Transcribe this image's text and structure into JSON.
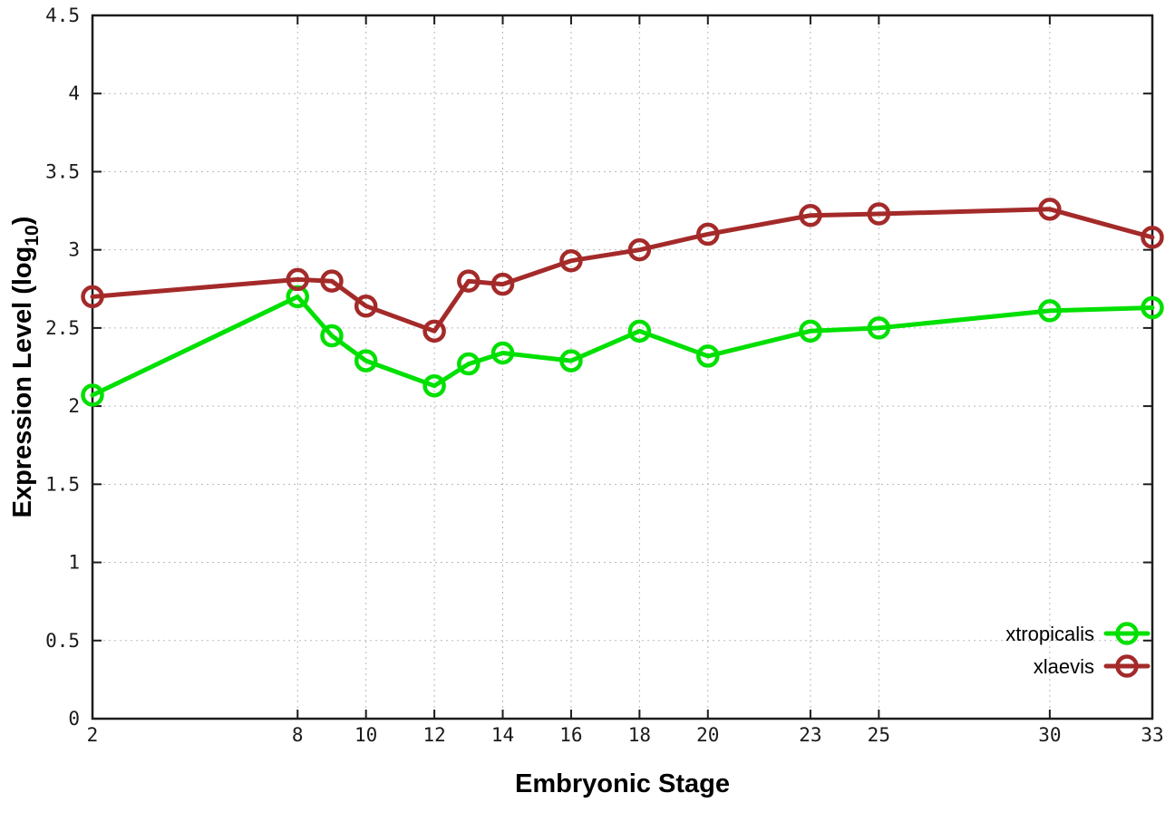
{
  "figure": {
    "background": "#ffffff",
    "border_color": "#1c1c1c",
    "grid_color": "#b8b8b8",
    "tick_text_color": "#1a1a1a"
  },
  "chart_data": {
    "type": "line",
    "title": "",
    "xlabel": "Embryonic Stage",
    "ylabel_parts": {
      "prefix": "Expression Level (log",
      "subscript": "10",
      "suffix": ")"
    },
    "x": [
      2,
      8,
      9,
      10,
      12,
      13,
      14,
      16,
      18,
      20,
      23,
      25,
      30,
      33
    ],
    "series": [
      {
        "name": "xtropicalis",
        "color": "#00e000",
        "values": [
          2.07,
          2.7,
          2.45,
          2.29,
          2.13,
          2.27,
          2.34,
          2.29,
          2.48,
          2.32,
          2.48,
          2.5,
          2.61,
          2.63
        ]
      },
      {
        "name": "xlaevis",
        "color": "#a42a2a",
        "values": [
          2.7,
          2.81,
          2.8,
          2.64,
          2.48,
          2.8,
          2.78,
          2.93,
          3.0,
          3.1,
          3.22,
          3.23,
          3.26,
          3.08
        ]
      }
    ],
    "xlim": [
      2,
      33
    ],
    "ylim": [
      0,
      4.5
    ],
    "x_tick_labels": [
      "2",
      "8",
      "10",
      "12",
      "14",
      "16",
      "18",
      "20",
      "23",
      "25",
      "30",
      "33"
    ],
    "x_tick_values": [
      2,
      8,
      10,
      12,
      14,
      16,
      18,
      20,
      23,
      25,
      30,
      33
    ],
    "y_tick_labels": [
      "0",
      "0.5",
      "1",
      "1.5",
      "2",
      "2.5",
      "3",
      "3.5",
      "4",
      "4.5"
    ],
    "y_tick_values": [
      0,
      0.5,
      1,
      1.5,
      2,
      2.5,
      3,
      3.5,
      4,
      4.5
    ],
    "grid": true,
    "legend_position": "bottom-right",
    "marker": "open-circle",
    "line_width": 5
  }
}
